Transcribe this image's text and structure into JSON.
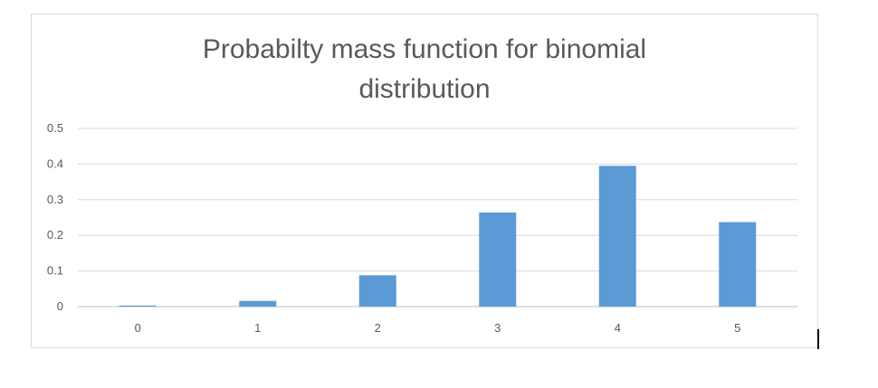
{
  "chart_data": {
    "type": "bar",
    "title_lines": [
      "Probabilty mass function for binomial",
      "distribution"
    ],
    "categories": [
      "0",
      "1",
      "2",
      "3",
      "4",
      "5"
    ],
    "values": [
      0.003,
      0.016,
      0.088,
      0.264,
      0.395,
      0.237
    ],
    "ylim": [
      0,
      0.5
    ],
    "yticks": [
      "0",
      "0.1",
      "0.2",
      "0.3",
      "0.4",
      "0.5"
    ],
    "xlabel": "",
    "ylabel": "",
    "grid": true,
    "bar_color": "#5b9bd5"
  }
}
